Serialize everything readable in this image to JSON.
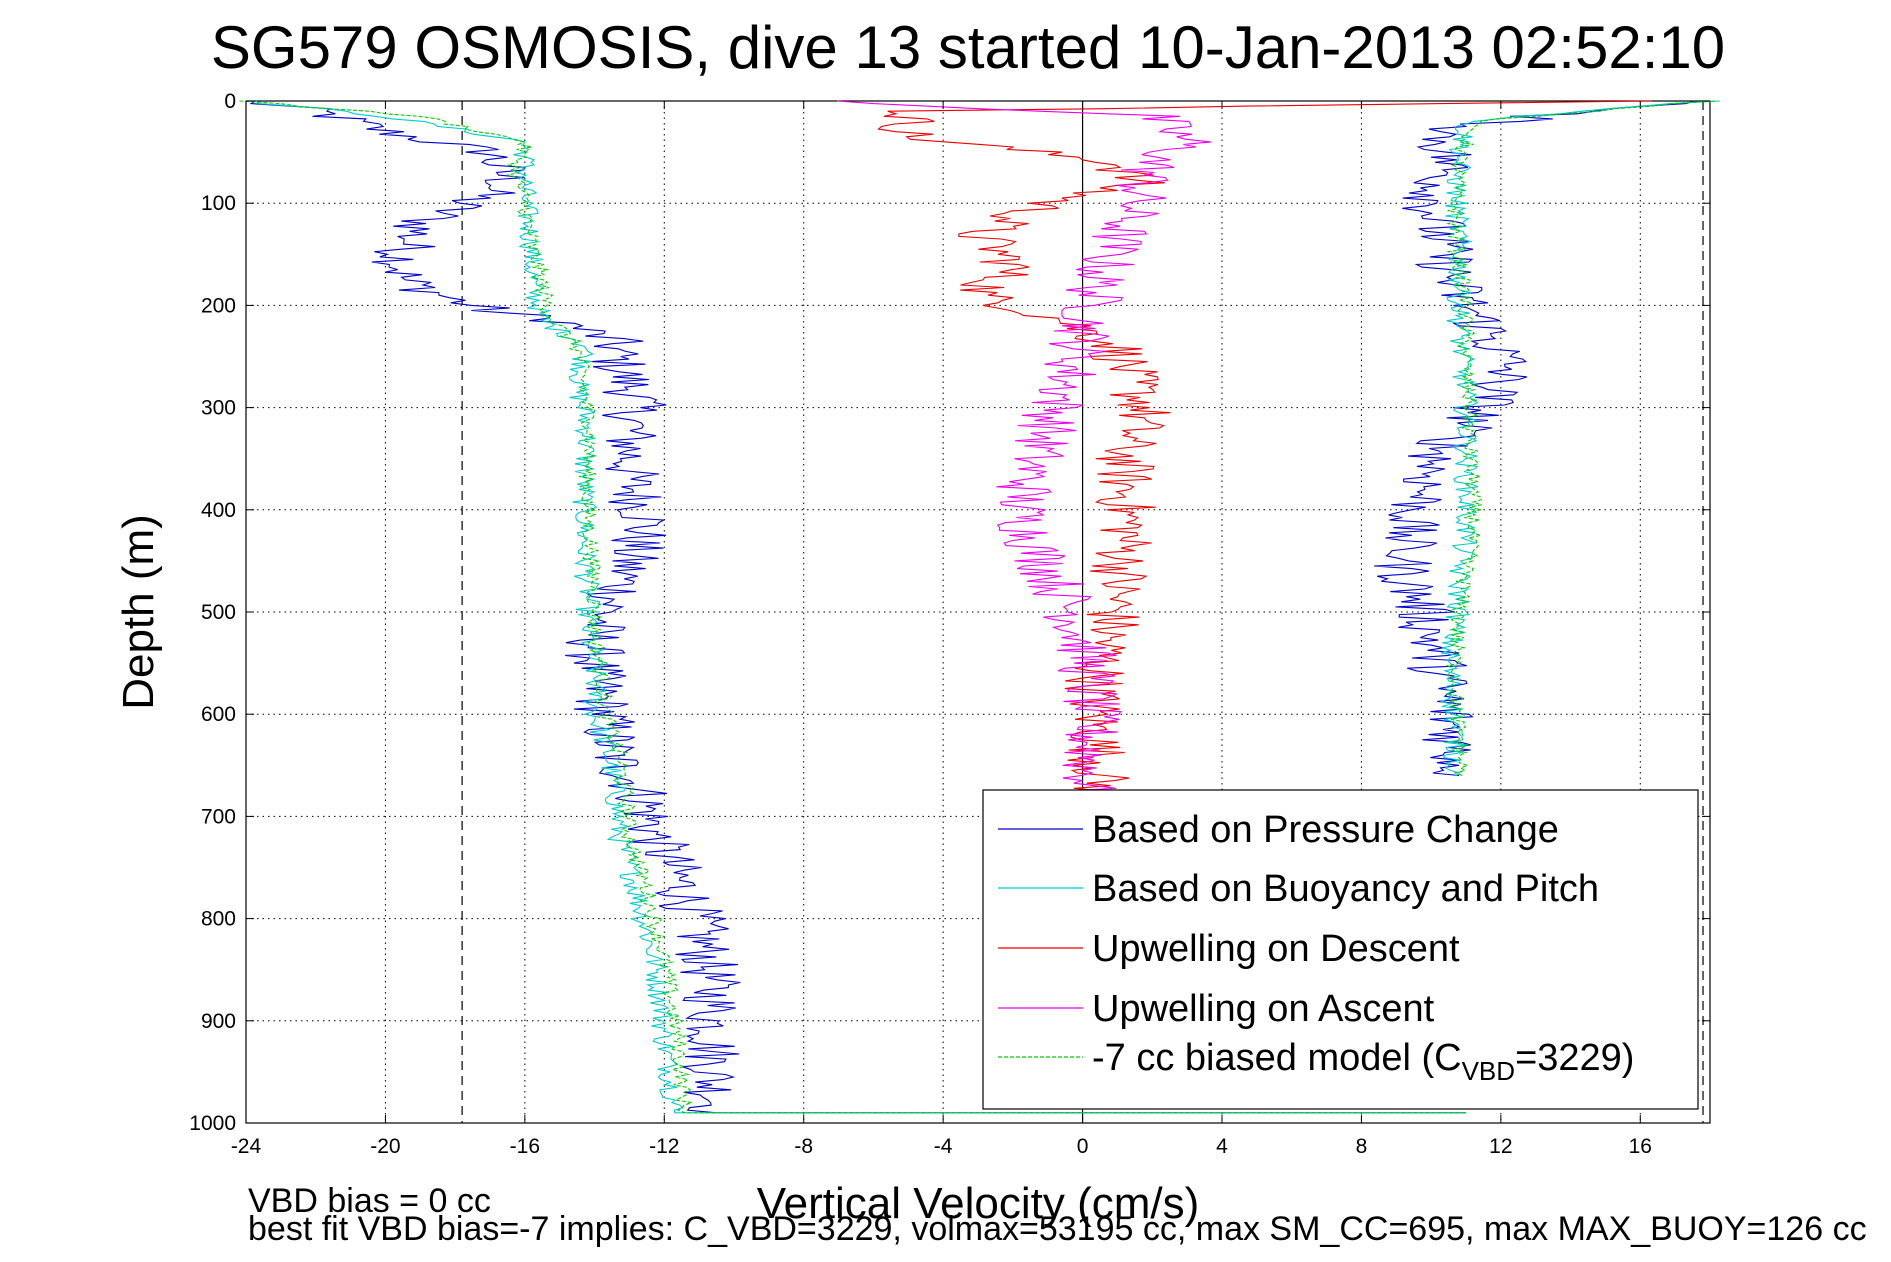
{
  "chart_data": {
    "type": "line",
    "title": "SG579 OSMOSIS, dive 13 started 10-Jan-2013 02:52:10",
    "xlabel": "Vertical Velocity (cm/s)",
    "ylabel": "Depth (m)",
    "xlim": [
      -24,
      18
    ],
    "ylim": [
      0,
      1000
    ],
    "y_reversed": true,
    "grid": true,
    "xticks": [
      -24,
      -20,
      -16,
      -12,
      -8,
      -4,
      0,
      4,
      8,
      12,
      16
    ],
    "yticks": [
      0,
      100,
      200,
      300,
      400,
      500,
      600,
      700,
      800,
      900,
      1000
    ],
    "vlines": [
      -17.8,
      17.8
    ],
    "legend_position": "bottom-right",
    "series": [
      {
        "name": "Based on Pressure Change",
        "color": "#0000cc",
        "style": "solid",
        "points": [
          [
            -24,
            0
          ],
          [
            -22,
            10
          ],
          [
            -20,
            30
          ],
          [
            -17,
            50
          ],
          [
            -16.5,
            80
          ],
          [
            -19,
            120
          ],
          [
            -19.5,
            150
          ],
          [
            -19.5,
            175
          ],
          [
            -18,
            195
          ],
          [
            -17,
            205
          ],
          [
            -15,
            215
          ],
          [
            -13.5,
            235
          ],
          [
            -13.3,
            260
          ],
          [
            -12.8,
            290
          ],
          [
            -13,
            330
          ],
          [
            -13,
            370
          ],
          [
            -12.5,
            410
          ],
          [
            -13,
            445
          ],
          [
            -13.3,
            480
          ],
          [
            -14,
            520
          ],
          [
            -14,
            560
          ],
          [
            -13.7,
            600
          ],
          [
            -13.5,
            640
          ],
          [
            -12.6,
            680
          ],
          [
            -12.3,
            720
          ],
          [
            -11.6,
            760
          ],
          [
            -11.1,
            800
          ],
          [
            -10.8,
            840
          ],
          [
            -10.6,
            880
          ],
          [
            -10.6,
            920
          ],
          [
            -10.6,
            960
          ],
          [
            -10.5,
            990
          ],
          [
            11,
            990
          ]
        ]
      },
      {
        "name": "Based on Buoyancy and Pitch",
        "color": "#00cccc",
        "style": "solid",
        "points": [
          [
            -24,
            0
          ],
          [
            -20,
            15
          ],
          [
            -16,
            40
          ],
          [
            -16,
            70
          ],
          [
            -16,
            100
          ],
          [
            -15.8,
            140
          ],
          [
            -15.8,
            180
          ],
          [
            -15.5,
            215
          ],
          [
            -14.2,
            240
          ],
          [
            -14.5,
            280
          ],
          [
            -14.2,
            320
          ],
          [
            -14.3,
            360
          ],
          [
            -14.3,
            400
          ],
          [
            -14.3,
            440
          ],
          [
            -14.2,
            480
          ],
          [
            -14.2,
            520
          ],
          [
            -14,
            560
          ],
          [
            -14,
            600
          ],
          [
            -13.6,
            640
          ],
          [
            -13.4,
            680
          ],
          [
            -13.3,
            720
          ],
          [
            -12.9,
            760
          ],
          [
            -12.6,
            800
          ],
          [
            -12.3,
            840
          ],
          [
            -12.1,
            880
          ],
          [
            -12,
            920
          ],
          [
            -11.8,
            960
          ],
          [
            -11.7,
            990
          ],
          [
            11,
            990
          ]
        ]
      },
      {
        "name": "Upwelling on Descent",
        "color": "#ee0000",
        "style": "solid",
        "points": [
          [
            16,
            0
          ],
          [
            -5,
            10
          ],
          [
            -5,
            35
          ],
          [
            1,
            60
          ],
          [
            1.5,
            80
          ],
          [
            -1,
            100
          ],
          [
            -3,
            130
          ],
          [
            -2,
            160
          ],
          [
            -3,
            190
          ],
          [
            -0.5,
            215
          ],
          [
            1,
            240
          ],
          [
            1.3,
            270
          ],
          [
            1.8,
            300
          ],
          [
            1.2,
            340
          ],
          [
            1.2,
            380
          ],
          [
            1.3,
            420
          ],
          [
            1.1,
            460
          ],
          [
            0.9,
            500
          ],
          [
            0.6,
            540
          ],
          [
            0.3,
            580
          ],
          [
            0.4,
            620
          ],
          [
            0.5,
            660
          ],
          [
            0.5,
            690
          ]
        ]
      },
      {
        "name": "Upwelling on Ascent",
        "color": "#ee00ee",
        "style": "solid",
        "points": [
          [
            -7,
            0
          ],
          [
            2,
            15
          ],
          [
            3,
            40
          ],
          [
            2,
            60
          ],
          [
            1.5,
            100
          ],
          [
            0.5,
            170
          ],
          [
            0,
            230
          ],
          [
            -0.5,
            280
          ],
          [
            -1,
            320
          ],
          [
            -1.5,
            360
          ],
          [
            -1.8,
            400
          ],
          [
            -1.3,
            440
          ],
          [
            -0.8,
            470
          ],
          [
            -0.3,
            500
          ],
          [
            0.1,
            540
          ],
          [
            0.2,
            580
          ],
          [
            0.2,
            630
          ],
          [
            0.1,
            690
          ]
        ]
      },
      {
        "name": "-7 cc biased model (C_VBD=3229)",
        "color": "#00cc00",
        "style": "dashed",
        "points": [
          [
            -24,
            0
          ],
          [
            -19,
            15
          ],
          [
            -16,
            40
          ],
          [
            -16.3,
            70
          ],
          [
            -16,
            100
          ],
          [
            -15.8,
            140
          ],
          [
            -15.5,
            180
          ],
          [
            -15.3,
            210
          ],
          [
            -14.5,
            240
          ],
          [
            -14.3,
            280
          ],
          [
            -14.1,
            320
          ],
          [
            -14.2,
            360
          ],
          [
            -14.2,
            400
          ],
          [
            -14.1,
            440
          ],
          [
            -14,
            480
          ],
          [
            -14,
            520
          ],
          [
            -13.8,
            560
          ],
          [
            -13.7,
            600
          ],
          [
            -13.3,
            640
          ],
          [
            -13.1,
            680
          ],
          [
            -13,
            720
          ],
          [
            -12.6,
            760
          ],
          [
            -12.3,
            800
          ],
          [
            -12,
            840
          ],
          [
            -11.8,
            880
          ],
          [
            -11.6,
            920
          ],
          [
            -11.5,
            960
          ],
          [
            -11.4,
            990
          ],
          [
            11,
            990
          ]
        ]
      },
      {
        "name": "",
        "color": "#0000cc",
        "style": "solid",
        "points": [
          [
            18,
            0
          ],
          [
            14,
            10
          ],
          [
            10.3,
            30
          ],
          [
            10.5,
            60
          ],
          [
            10,
            100
          ],
          [
            10.3,
            140
          ],
          [
            10.6,
            180
          ],
          [
            11.5,
            220
          ],
          [
            12.2,
            260
          ],
          [
            11.5,
            300
          ],
          [
            10.3,
            340
          ],
          [
            9.8,
            380
          ],
          [
            9.3,
            420
          ],
          [
            9.2,
            460
          ],
          [
            9.8,
            500
          ],
          [
            10.1,
            540
          ],
          [
            10.4,
            580
          ],
          [
            10.6,
            620
          ],
          [
            10.8,
            660
          ]
        ]
      },
      {
        "name": "",
        "color": "#00cccc",
        "style": "solid",
        "points": [
          [
            18,
            0
          ],
          [
            11,
            20
          ],
          [
            10.8,
            60
          ],
          [
            10.7,
            100
          ],
          [
            10.8,
            140
          ],
          [
            10.8,
            180
          ],
          [
            10.8,
            220
          ],
          [
            10.9,
            260
          ],
          [
            11,
            300
          ],
          [
            11,
            340
          ],
          [
            11,
            380
          ],
          [
            11,
            420
          ],
          [
            10.8,
            460
          ],
          [
            10.8,
            500
          ],
          [
            10.5,
            540
          ],
          [
            10.6,
            580
          ],
          [
            10.7,
            620
          ],
          [
            10.7,
            660
          ]
        ]
      },
      {
        "name": "",
        "color": "#00cc00",
        "style": "dashed",
        "points": [
          [
            18,
            0
          ],
          [
            11.2,
            20
          ],
          [
            10.8,
            60
          ],
          [
            10.7,
            100
          ],
          [
            10.7,
            140
          ],
          [
            10.9,
            180
          ],
          [
            11,
            220
          ],
          [
            11,
            260
          ],
          [
            11.1,
            300
          ],
          [
            11.1,
            340
          ],
          [
            11.2,
            380
          ],
          [
            11.2,
            420
          ],
          [
            11,
            460
          ],
          [
            10.8,
            500
          ],
          [
            10.7,
            540
          ],
          [
            10.7,
            580
          ],
          [
            10.8,
            620
          ],
          [
            10.9,
            660
          ]
        ]
      }
    ]
  },
  "footer": {
    "line1": "VBD bias = 0 cc",
    "line2": "best fit VBD bias=-7 implies: C_VBD=3229, volmax=53195 cc, max SM_CC=695, max MAX_BUOY=126 cc"
  }
}
